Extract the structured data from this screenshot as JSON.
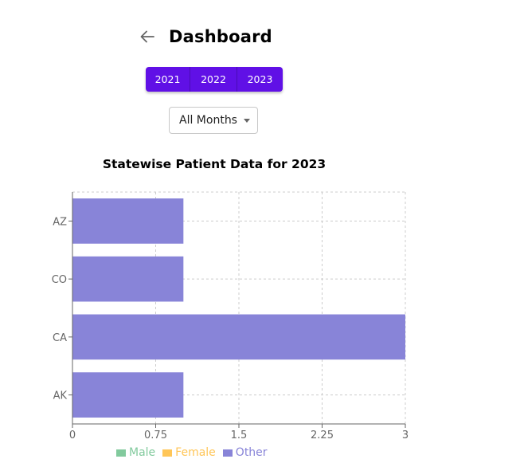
{
  "header": {
    "back_icon": "arrow-left-icon",
    "title": "Dashboard"
  },
  "year_selector": {
    "years": [
      "2021",
      "2022",
      "2023"
    ],
    "accent_color": "#6010e6"
  },
  "month_select": {
    "selected": "All Months",
    "icon": "caret-down-icon"
  },
  "chart": {
    "title": "Statewise Patient Data for 2023"
  },
  "chart_data": {
    "type": "bar",
    "orientation": "horizontal",
    "title": "Statewise Patient Data for 2023",
    "categories": [
      "AZ",
      "CO",
      "CA",
      "AK"
    ],
    "series": [
      {
        "name": "Male",
        "color": "#82ca9d",
        "values": [
          0,
          0,
          0,
          0
        ]
      },
      {
        "name": "Female",
        "color": "#ffc658",
        "values": [
          0,
          0,
          0,
          0
        ]
      },
      {
        "name": "Other",
        "color": "#8884d8",
        "values": [
          1,
          1,
          3,
          1
        ]
      }
    ],
    "xlabel": "",
    "ylabel": "",
    "xlim": [
      0,
      3
    ],
    "x_ticks": [
      "0",
      "0.75",
      "1.5",
      "2.25",
      "3"
    ],
    "grid": true,
    "legend_position": "bottom"
  },
  "legend": [
    {
      "label": "Male",
      "color": "#82ca9d"
    },
    {
      "label": "Female",
      "color": "#ffc658"
    },
    {
      "label": "Other",
      "color": "#8884d8"
    }
  ]
}
